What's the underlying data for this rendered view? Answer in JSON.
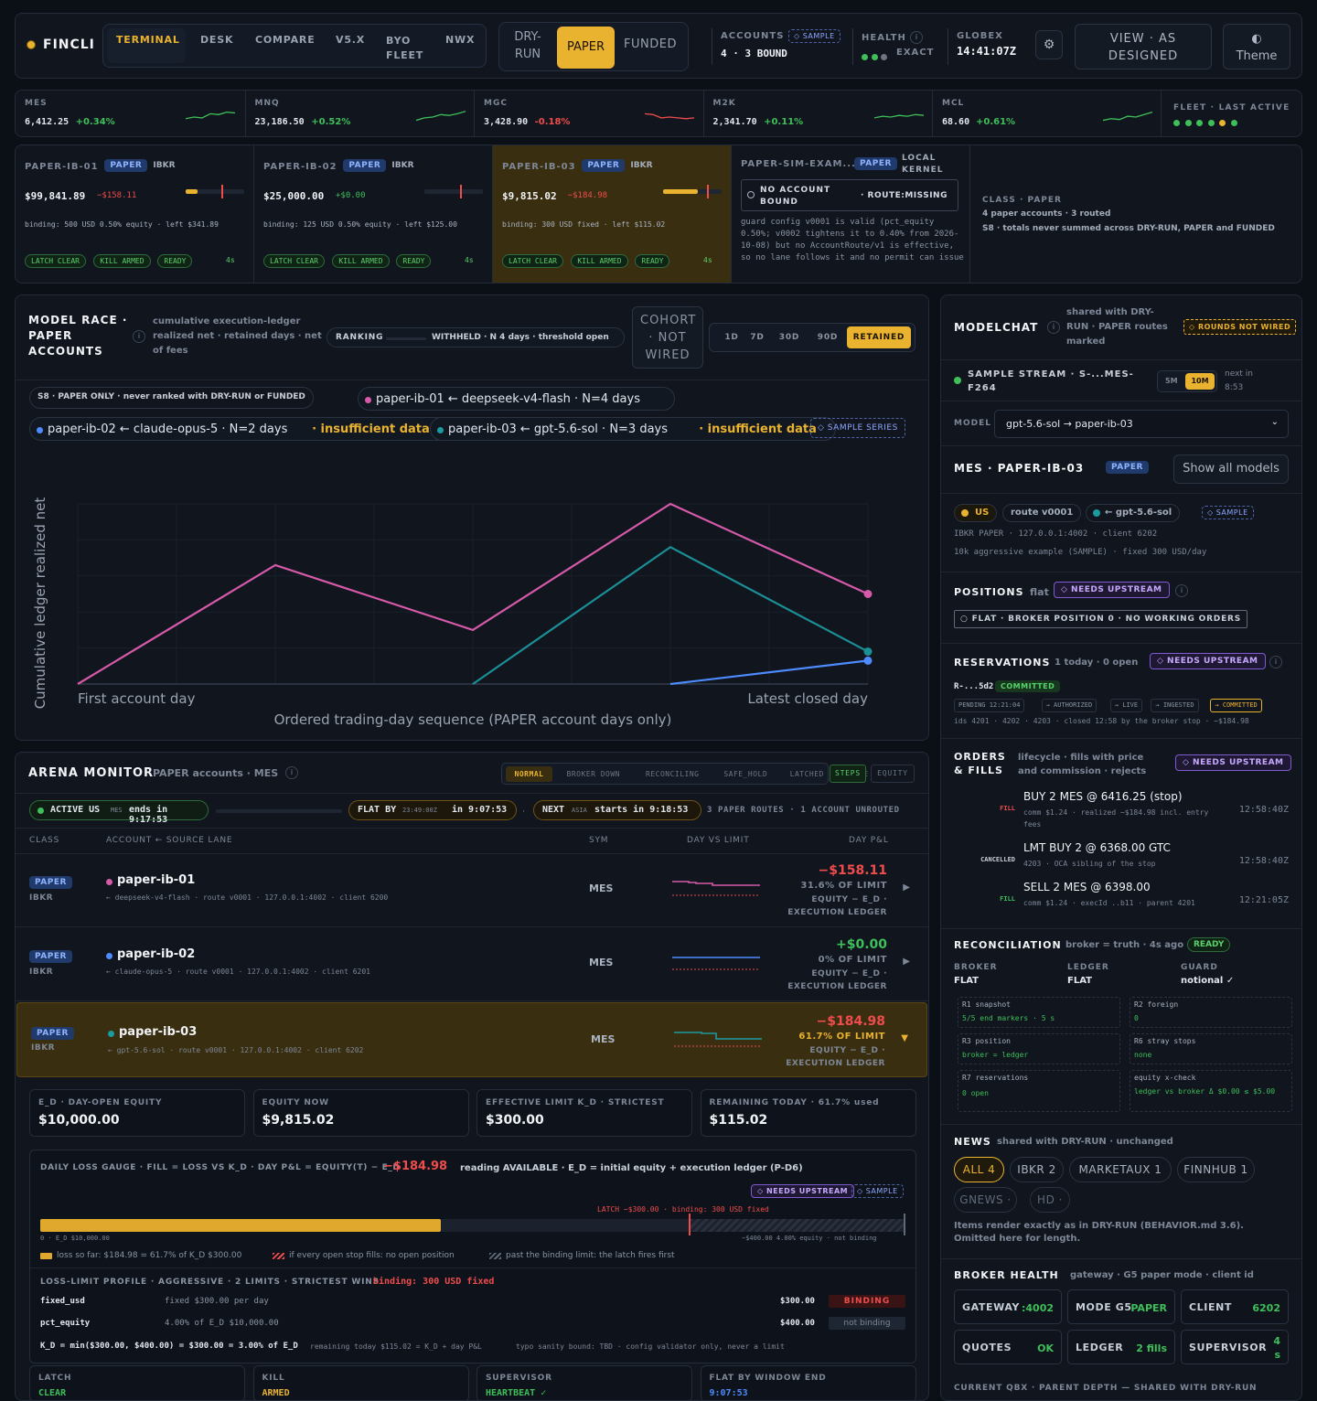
{
  "top": {
    "brand": "FINCLI",
    "nav": [
      "TERMINAL",
      "DESK",
      "COMPARE",
      "V5.X",
      "BYO FLEET",
      "NWX"
    ],
    "modes": [
      "DRY-RUN",
      "PAPER",
      "FUNDED"
    ],
    "accounts_label": "ACCOUNTS",
    "accounts_badge": "◇ SAMPLE",
    "accounts_value": "4 · 3 BOUND",
    "health_label": "HEALTH",
    "health_info": "i",
    "health_value": "EXACT",
    "globex_label": "GLOBEX",
    "globex_time": "14:41:07Z",
    "gear": "⚙",
    "view_btn": "VIEW · AS DESIGNED",
    "theme_icon": "◐",
    "theme_btn": "Theme"
  },
  "tickers": [
    {
      "sym": "MES",
      "price": "6,412.25",
      "chg": "+0.34%",
      "up": true
    },
    {
      "sym": "MNQ",
      "price": "23,186.50",
      "chg": "+0.52%",
      "up": true
    },
    {
      "sym": "MGC",
      "price": "3,428.90",
      "chg": "-0.18%",
      "up": false
    },
    {
      "sym": "M2K",
      "price": "2,341.70",
      "chg": "+0.11%",
      "up": true
    },
    {
      "sym": "MCL",
      "price": "68.60",
      "chg": "+0.61%",
      "up": true
    }
  ],
  "fleet_label": "FLEET · LAST ACTIVE",
  "accounts": [
    {
      "name": "PAPER-IB-01",
      "badge": "PAPER",
      "broker": "IBKR",
      "equity": "$99,841.89",
      "pnl": "−$158.11",
      "fill": 0.2,
      "binding": "binding: 500 USD 0.50% equity · left $341.89",
      "chips": [
        "LATCH CLEAR",
        "KILL ARMED",
        "READY"
      ],
      "age": "4s"
    },
    {
      "name": "PAPER-IB-02",
      "badge": "PAPER",
      "broker": "IBKR",
      "equity": "$25,000.00",
      "pnl": "+$0.00",
      "fill": 0,
      "binding": "binding: 125 USD 0.50% equity · left $125.00",
      "chips": [
        "LATCH CLEAR",
        "KILL ARMED",
        "READY"
      ],
      "age": "4s"
    },
    {
      "name": "PAPER-IB-03",
      "badge": "PAPER",
      "broker": "IBKR",
      "equity": "$9,815.02",
      "pnl": "−$184.98",
      "fill": 0.6,
      "binding": "binding: 300 USD fixed · left $115.02",
      "chips": [
        "LATCH CLEAR",
        "KILL ARMED",
        "READY"
      ],
      "age": "4s"
    }
  ],
  "sim": {
    "name": "PAPER-SIM-EXAM...",
    "badge": "PAPER",
    "kernel": "LOCAL KERNEL",
    "warn1": "NO ACCOUNT BOUND",
    "warn2": "· ROUTE:MISSING",
    "text": "guard config v0001 is valid (pct_equity 0.50%; v0002 tightens it to 0.40% from 2026-10-08) but no AccountRoute/v1 is effective, so no lane follows it and no permit can issue"
  },
  "class_box": {
    "label": "CLASS · PAPER",
    "line1": "4 paper accounts · 3 routed",
    "line2": "S8 · totals never summed across DRY-RUN, PAPER and FUNDED"
  },
  "race": {
    "title": "MODEL RACE · PAPER ACCOUNTS",
    "info": "i",
    "sub": "cumulative execution-ledger realized net · retained days · net of fees",
    "ranking": "RANKING",
    "ranking_val": "WITHHELD · N 4 days · threshold open",
    "cohort": "COHORT · NOT WIRED",
    "ranges": [
      "1D",
      "7D",
      "30D",
      "90D",
      "RETAINED"
    ],
    "s8": "S8 · PAPER ONLY · never ranked with DRY-RUN or FUNDED",
    "legend": [
      {
        "text": "paper-ib-01 ← deepseek-v4-flash · N=4 days",
        "warn": ""
      },
      {
        "text": "paper-ib-02 ← claude-opus-5 · N=2 days",
        "warn": "· insufficient data"
      },
      {
        "text": "paper-ib-03 ← gpt-5.6-sol · N=3 days",
        "warn": "· insufficient data"
      }
    ],
    "sample_series": "◇ SAMPLE SERIES"
  },
  "chart_data": {
    "type": "line",
    "ylabel": "Cumulative ledger realized net",
    "xlabel": "Ordered trading-day sequence (PAPER account days only)",
    "x_tick_labels": [
      "First account day",
      "Latest closed day"
    ],
    "x": [
      1,
      2,
      3,
      4,
      5
    ],
    "series": [
      {
        "name": "paper-ib-01",
        "color": "#d65aa9",
        "values": [
          [
            1,
            0
          ],
          [
            2,
            0.66
          ],
          [
            3,
            0.3
          ],
          [
            4,
            1.0
          ],
          [
            5,
            0.5
          ]
        ]
      },
      {
        "name": "paper-ib-03",
        "color": "#1b8f96",
        "values": [
          [
            3,
            0
          ],
          [
            4,
            0.76
          ],
          [
            5,
            0.18
          ]
        ]
      },
      {
        "name": "paper-ib-02",
        "color": "#4d8bff",
        "values": [
          [
            4,
            0
          ],
          [
            5,
            0.13
          ]
        ]
      }
    ]
  },
  "arena": {
    "title": "ARENA MONITOR",
    "sub": "PAPER accounts · MES",
    "info": "i",
    "states": [
      "NORMAL",
      "BROKER DOWN",
      "RECONCILING",
      "SAFE_HOLD",
      "LATCHED",
      "STALE"
    ],
    "views": [
      "STEPS",
      "EQUITY"
    ],
    "session": {
      "active": "ACTIVE US",
      "active_sub": "MES",
      "active_end": "ends in 9:17:53",
      "flat": "FLAT BY",
      "flat_time": "23:49:00Z",
      "flat_in": "in 9:07:53",
      "next": "NEXT",
      "next_sub": "ASIA",
      "next_in": "starts in 9:18:53",
      "routes": "3 PAPER ROUTES · 1 ACCOUNT UNROUTED"
    },
    "cols": [
      "CLASS",
      "ACCOUNT ← SOURCE LANE",
      "SYM",
      "DAY VS LIMIT",
      "DAY P&L"
    ],
    "rows": [
      {
        "cls": "PAPER",
        "broker": "IBKR",
        "name": "paper-ib-01",
        "color": "#d65aa9",
        "lane": "← deepseek-v4-flash · route v0001 · 127.0.0.1:4002 · client 6200",
        "sym": "MES",
        "pnl": "−$158.11",
        "pct": "31.6% OF LIMIT",
        "note": "EQUITY − E_D · EXECUTION LEDGER",
        "neg": true
      },
      {
        "cls": "PAPER",
        "broker": "IBKR",
        "name": "paper-ib-02",
        "color": "#4d8bff",
        "lane": "← claude-opus-5 · route v0001 · 127.0.0.1:4002 · client 6201",
        "sym": "MES",
        "pnl": "+$0.00",
        "pct": "0% OF LIMIT",
        "note": "EQUITY − E_D · EXECUTION LEDGER",
        "neg": false
      },
      {
        "cls": "PAPER",
        "broker": "IBKR",
        "name": "paper-ib-03",
        "color": "#1b9aa0",
        "lane": "← gpt-5.6-sol · route v0001 · 127.0.0.1:4002 · client 6202",
        "sym": "MES",
        "pnl": "−$184.98",
        "pct": "61.7% OF LIMIT",
        "note": "EQUITY − E_D · EXECUTION LEDGER",
        "neg": true
      }
    ],
    "stats": [
      {
        "label": "E_D · DAY-OPEN EQUITY",
        "value": "$10,000.00"
      },
      {
        "label": "EQUITY NOW",
        "value": "$9,815.02"
      },
      {
        "label": "EFFECTIVE LIMIT K_D · STRICTEST",
        "value": "$300.00"
      },
      {
        "label": "REMAINING TODAY · 61.7% used",
        "value": "$115.02"
      }
    ],
    "gauge": {
      "title": "DAILY LOSS GAUGE · fill = loss vs K_D · day P&L = equity(t) − E_D",
      "value": "−$184.98",
      "reading": "reading AVAILABLE · E_D = initial equity + execution ledger (P-D6)",
      "needs": "◇ NEEDS UPSTREAM",
      "sample": "◇ SAMPLE",
      "latch": "LATCH −$300.00 · binding: 300 USD fixed",
      "fill": 0.617,
      "left": "0 · E_D $10,000.00",
      "right": "−$400.00 4.00% equity · not binding",
      "leg1": "loss so far: $184.98 = 61.7% of K_D $300.00",
      "leg2": "if every open stop fills: no open position",
      "leg3": "past the binding limit: the latch fires first"
    },
    "profile": {
      "title": "LOSS-LIMIT PROFILE · AGGRESSIVE · 2 LIMITS · STRICTEST WINS",
      "binding": "binding: 300 USD fixed",
      "rows": [
        {
          "k": "fixed_usd",
          "d": "fixed $300.00 per day",
          "v": "$300.00",
          "tag": "BINDING"
        },
        {
          "k": "pct_equity",
          "d": "4.00% of E_D $10,000.00",
          "v": "$400.00",
          "tag": "not binding"
        }
      ],
      "formula": "K_D = min($300.00, $400.00) = $300.00 = 3.00% of E_D",
      "rem": "remaining today $115.02 = K_D + day P&L",
      "typo": "typo sanity bound: TBD · config validator only, never a limit"
    },
    "bottom": [
      {
        "label": "LATCH",
        "value": "CLEAR"
      },
      {
        "label": "KILL",
        "value": "ARMED"
      },
      {
        "label": "SUPERVISOR",
        "value": "HEARTBEAT ✓"
      },
      {
        "label": "FLAT BY WINDOW END",
        "value": "9:07:53"
      }
    ]
  },
  "chat": {
    "title": "MODELCHAT",
    "info": "i",
    "sub": "shared with DRY-RUN · PAPER routes marked",
    "rounds": "◇ ROUNDS NOT WIRED",
    "stream": "SAMPLE STREAM · S-...MES-F264",
    "intervals": [
      "5M",
      "10M"
    ],
    "next": "next in 8:53",
    "model_label": "MODEL",
    "model_value": "gpt-5.6-sol → paper-ib-03",
    "acct_title": "MES · PAPER-IB-03",
    "acct_badge": "PAPER",
    "show_all": "Show all models",
    "tags": [
      "US",
      "route v0001",
      "← gpt-5.6-sol",
      "◇ SAMPLE"
    ],
    "ibkr": "IBKR PAPER · 127.0.0.1:4002 · client 6202",
    "example": "10k aggressive example (SAMPLE) · fixed 300 USD/day"
  },
  "positions": {
    "title": "POSITIONS",
    "sub": "flat",
    "needs": "◇ NEEDS UPSTREAM",
    "info": "i",
    "flat": "○ FLAT · BROKER POSITION 0 · NO WORKING ORDERS"
  },
  "reservations": {
    "title": "RESERVATIONS",
    "sub": "1 today · 0 open",
    "needs": "◇ NEEDS UPSTREAM",
    "info": "i",
    "id": "R-...5d2",
    "state": "COMMITTED",
    "steps": [
      "PENDING 12:21:04",
      "→ AUTHORIZED",
      "→ LIVE",
      "→ INGESTED",
      "→ COMMITTED"
    ],
    "ids": "ids 4201 · 4202 · 4203 · closed 12:58 by the broker stop · −$184.98"
  },
  "orders": {
    "title": "ORDERS & FILLS",
    "sub": "lifecycle · fills with price and commission · rejects",
    "needs": "◇ NEEDS UPSTREAM",
    "rows": [
      {
        "tag": "FILL",
        "main": "BUY 2 MES @ 6416.25 (stop)",
        "sub": "comm $1.24 · realized −$184.98 incl. entry fees",
        "time": "12:58:40Z"
      },
      {
        "tag": "CANCELLED",
        "main": "LMT BUY 2 @ 6368.00 GTC",
        "sub": "4203 · OCA sibling of the stop",
        "time": "12:58:40Z"
      },
      {
        "tag": "FILL",
        "main": "SELL 2 MES @ 6398.00",
        "sub": "comm $1.24 · execId ..b11 · parent 4201",
        "time": "12:21:05Z"
      }
    ]
  },
  "recon": {
    "title": "RECONCILIATION",
    "sub": "broker = truth · 4s ago",
    "state": "READY",
    "heads": [
      {
        "k": "BROKER",
        "v": "FLAT"
      },
      {
        "k": "LEDGER",
        "v": "FLAT"
      },
      {
        "k": "GUARD",
        "v": "notional ✓"
      }
    ],
    "checks": [
      {
        "k": "R1 snapshot",
        "v": "5/5 end markers · 5 s"
      },
      {
        "k": "R2 foreign",
        "v": "0"
      },
      {
        "k": "R3 position",
        "v": "broker = ledger"
      },
      {
        "k": "R6 stray stops",
        "v": "none"
      },
      {
        "k": "R7 reservations",
        "v": "0 open"
      },
      {
        "k": "equity x-check",
        "v": "ledger vs broker Δ $0.00 ≤ $5.00"
      }
    ]
  },
  "news": {
    "title": "NEWS",
    "sub": "shared with DRY-RUN · unchanged",
    "chips": [
      "ALL 4",
      "IBKR 2",
      "MARKETAUX 1",
      "FINNHUB 1",
      "GNEWS ·",
      "HD ·"
    ],
    "note": "Items render exactly as in DRY-RUN (BEHAVIOR.md 3.6). Omitted here for length."
  },
  "broker": {
    "title": "BROKER HEALTH",
    "sub": "gateway · G5 paper mode · client id",
    "cells": [
      {
        "k": "GATEWAY",
        "v": ":4002"
      },
      {
        "k": "MODE G5",
        "v": "PAPER"
      },
      {
        "k": "CLIENT",
        "v": "6202"
      },
      {
        "k": "QUOTES",
        "v": "OK"
      },
      {
        "k": "LEDGER",
        "v": "2 fills"
      },
      {
        "k": "SUPERVISOR",
        "v": "4 s"
      }
    ],
    "footer": "CURRENT QBX · PARENT DEPTH — SHARED WITH DRY-RUN"
  }
}
